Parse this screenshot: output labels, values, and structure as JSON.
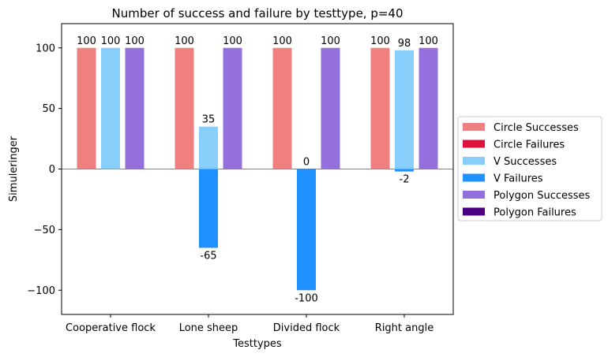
{
  "chart_data": {
    "type": "bar",
    "title": "Number of success and failure by testtype, p=40",
    "xlabel": "Testtypes",
    "ylabel": "Simuleringer",
    "categories": [
      "Cooperative flock",
      "Lone sheep",
      "Divided flock",
      "Right angle"
    ],
    "ylim": [
      -120,
      120
    ],
    "yticks": [
      -100,
      -50,
      0,
      50,
      100
    ],
    "ytick_labels": [
      "−100",
      "−50",
      "0",
      "50",
      "100"
    ],
    "grid": false,
    "legend_position": "center-right-outside",
    "groups": [
      {
        "name": "Circle",
        "successes": {
          "name": "Circle Successes",
          "color": "#f08080",
          "values": [
            100,
            100,
            100,
            100
          ]
        },
        "failures": {
          "name": "Circle Failures",
          "color": "#dc143c",
          "values": [
            0,
            0,
            0,
            0
          ]
        }
      },
      {
        "name": "V",
        "successes": {
          "name": "V Successes",
          "color": "#87cefa",
          "values": [
            100,
            35,
            0,
            98
          ]
        },
        "failures": {
          "name": "V Failures",
          "color": "#1e90ff",
          "values": [
            0,
            -65,
            -100,
            -2
          ]
        }
      },
      {
        "name": "Polygon",
        "successes": {
          "name": "Polygon Successes",
          "color": "#9370db",
          "values": [
            100,
            100,
            100,
            100
          ]
        },
        "failures": {
          "name": "Polygon Failures",
          "color": "#4b0082",
          "values": [
            0,
            0,
            0,
            0
          ]
        }
      }
    ],
    "legend": [
      "Circle Successes",
      "Circle Failures",
      "V Successes",
      "V Failures",
      "Polygon Successes",
      "Polygon Failures"
    ]
  }
}
